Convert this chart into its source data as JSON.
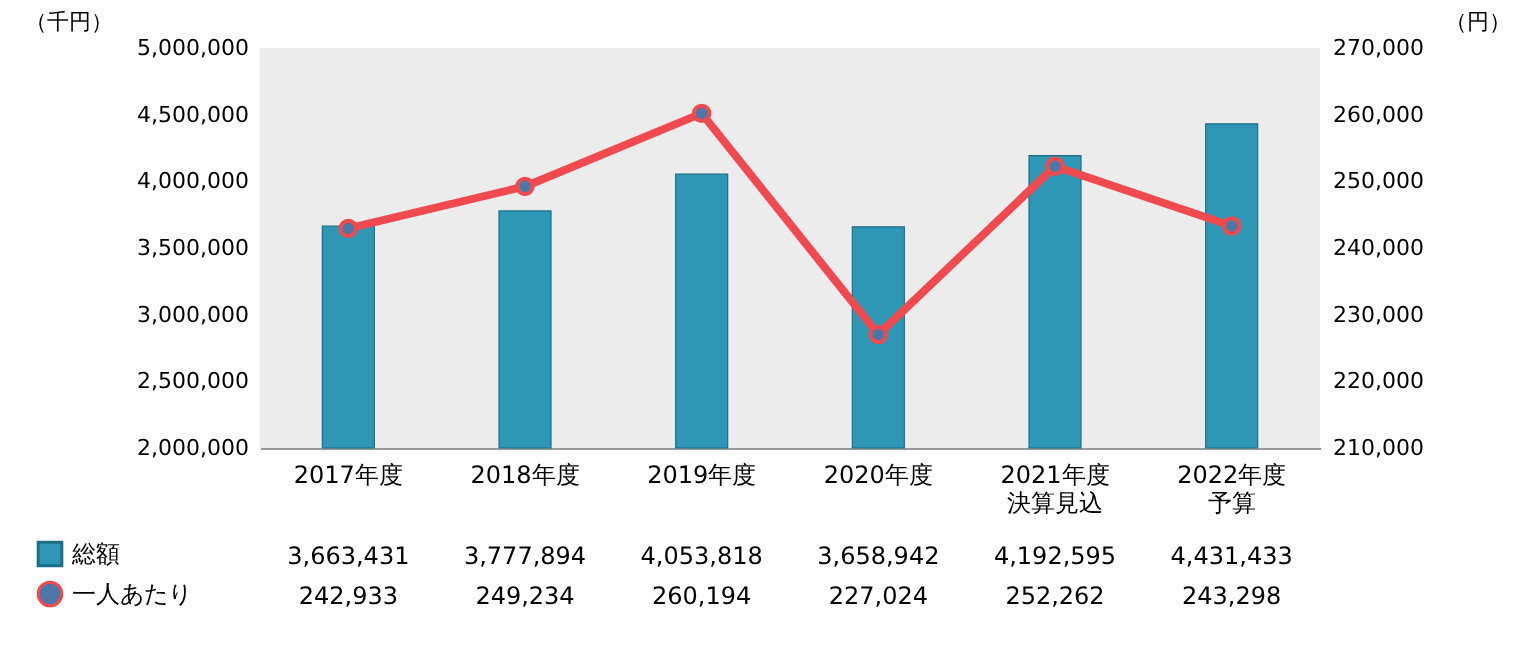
{
  "chart_data": {
    "type": "bar",
    "ylabel": "（千円）",
    "y2label": "（円）",
    "categories": [
      "2017年度",
      "2018年度",
      "2019年度",
      "2020年度",
      "2021年度決算見込",
      "2022年度予算"
    ],
    "series": [
      {
        "name": "総額",
        "color": "#2e97b5",
        "values": [
          3663431,
          3777894,
          4053818,
          3658942,
          4192595,
          4431433
        ],
        "value_labels": [
          "3,663,431",
          "3,777,894",
          "4,053,818",
          "3,658,942",
          "4,192,595",
          "4,431,433"
        ]
      },
      {
        "name": "一人あたり",
        "type": "line",
        "axis": "y2",
        "color": "#f04a4f",
        "values": [
          242933,
          249234,
          260194,
          227024,
          252262,
          243298
        ],
        "value_labels": [
          "242,933",
          "249,234",
          "260,194",
          "227,024",
          "252,262",
          "243,298"
        ]
      }
    ],
    "ylim": [
      2000000,
      5000000
    ],
    "yticks": [
      {
        "value": 2000000,
        "label": "2,000,000"
      },
      {
        "value": 2500000,
        "label": "2,500,000"
      },
      {
        "value": 3000000,
        "label": "3,000,000"
      },
      {
        "value": 3500000,
        "label": "3,500,000"
      },
      {
        "value": 4000000,
        "label": "4,000,000"
      },
      {
        "value": 4500000,
        "label": "4,500,000"
      },
      {
        "value": 5000000,
        "label": "5,000,000"
      }
    ],
    "y2lim": [
      210000,
      270000
    ],
    "y2ticks": [
      {
        "value": 210000,
        "label": "210,000"
      },
      {
        "value": 220000,
        "label": "220,000"
      },
      {
        "value": 230000,
        "label": "230,000"
      },
      {
        "value": 240000,
        "label": "240,000"
      },
      {
        "value": 250000,
        "label": "250,000"
      },
      {
        "value": 260000,
        "label": "260,000"
      },
      {
        "value": 270000,
        "label": "270,000"
      }
    ],
    "marker": "circle",
    "legend": "bottom left",
    "grid": false
  }
}
